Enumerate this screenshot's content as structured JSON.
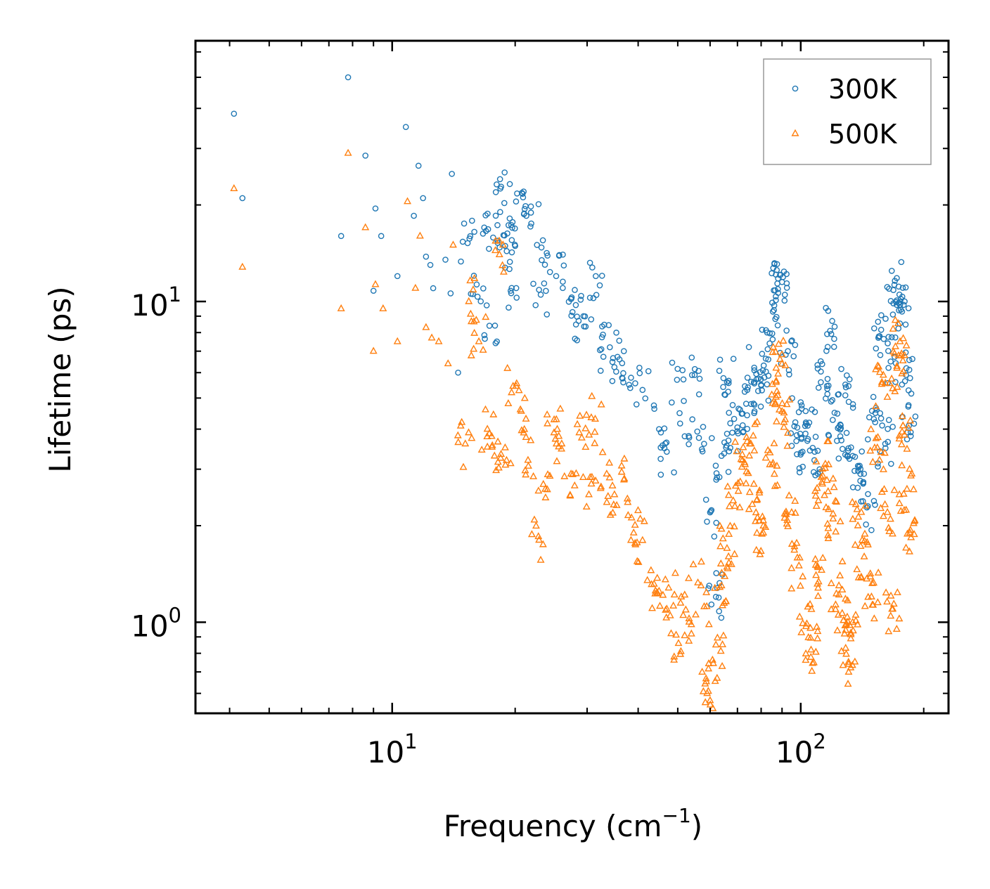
{
  "chart_data": {
    "type": "scatter",
    "xscale": "log",
    "yscale": "log",
    "xlim": [
      3.3,
      230
    ],
    "ylim": [
      0.52,
      65
    ],
    "xlabel": "Frequency (cm",
    "xlabel_sup": "−1",
    "xlabel_end": ")",
    "ylabel": "Lifetime (ps)",
    "legend_position": "top-right",
    "x_ticks": [
      {
        "value": 10,
        "base": "10",
        "exp": "1"
      },
      {
        "value": 100,
        "base": "10",
        "exp": "2"
      }
    ],
    "y_ticks": [
      {
        "value": 1,
        "base": "10",
        "exp": "0"
      },
      {
        "value": 10,
        "base": "10",
        "exp": "1"
      }
    ],
    "series": [
      {
        "name": "300K",
        "marker": "circle",
        "color": "#1f77b4",
        "points": [
          [
            4.1,
            38.5
          ],
          [
            4.3,
            21.0
          ],
          [
            7.5,
            16.0
          ],
          [
            7.8,
            50.0
          ],
          [
            8.6,
            28.5
          ],
          [
            9.0,
            10.8
          ],
          [
            9.1,
            19.5
          ],
          [
            9.4,
            16.0
          ],
          [
            10.3,
            12.0
          ],
          [
            10.8,
            35.0
          ],
          [
            11.3,
            18.5
          ],
          [
            11.6,
            26.5
          ],
          [
            11.9,
            21.0
          ],
          [
            12.1,
            13.8
          ],
          [
            12.4,
            13.0
          ],
          [
            12.6,
            11.0
          ],
          [
            13.5,
            13.5
          ],
          [
            13.9,
            10.6
          ],
          [
            14.0,
            25.0
          ],
          [
            14.5,
            6.0
          ],
          [
            15.0,
            17.5
          ],
          [
            15.3,
            15.2
          ],
          [
            16.1,
            11.3
          ],
          [
            16.8,
            17.0
          ],
          [
            17.3,
            8.4
          ],
          [
            18.1,
            17.3
          ],
          [
            18.4,
            22.5
          ],
          [
            18.9,
            14.9
          ],
          [
            19.5,
            10.8
          ],
          [
            20.0,
            14.9
          ],
          [
            20.1,
            20.5
          ],
          [
            21.3,
            18.5
          ],
          [
            21.9,
            17.5
          ],
          [
            23.1,
            10.5
          ],
          [
            24.0,
            13.9
          ],
          [
            25.2,
            12.0
          ],
          [
            27.5,
            10.3
          ],
          [
            28.6,
            8.7
          ],
          [
            29.4,
            9.0
          ],
          [
            31.5,
            12.0
          ],
          [
            32.5,
            7.1
          ],
          [
            34.1,
            7.2
          ],
          [
            36.0,
            6.6
          ],
          [
            38.0,
            5.5
          ],
          [
            41.0,
            5.3
          ],
          [
            45.0,
            4.0
          ],
          [
            47.0,
            3.4
          ],
          [
            49.8,
            5.7
          ],
          [
            52.0,
            3.8
          ],
          [
            55.0,
            5.9
          ],
          [
            58.0,
            3.6
          ],
          [
            60.0,
            2.2
          ],
          [
            62.0,
            1.2
          ],
          [
            64.0,
            3.3
          ],
          [
            66.0,
            5.6
          ],
          [
            68.0,
            3.9
          ],
          [
            71.0,
            4.6
          ],
          [
            74.0,
            5.3
          ],
          [
            77.0,
            6.1
          ],
          [
            80.0,
            5.5
          ],
          [
            83.0,
            7.1
          ],
          [
            86.0,
            9.4
          ],
          [
            88.0,
            11.8
          ],
          [
            90.0,
            11.5
          ],
          [
            93.0,
            7.0
          ],
          [
            97.0,
            4.2
          ],
          [
            101.0,
            3.4
          ],
          [
            104.0,
            4.1
          ],
          [
            108.0,
            3.2
          ],
          [
            112.0,
            5.6
          ],
          [
            118.0,
            8.1
          ],
          [
            121.0,
            4.5
          ],
          [
            125.0,
            3.8
          ],
          [
            129.0,
            5.4
          ],
          [
            134.0,
            3.3
          ],
          [
            140.0,
            2.9
          ],
          [
            146.0,
            2.3
          ],
          [
            151.0,
            4.3
          ],
          [
            156.0,
            7.8
          ],
          [
            161.0,
            3.6
          ],
          [
            166.0,
            6.5
          ],
          [
            170.0,
            11.6
          ],
          [
            174.0,
            9.9
          ],
          [
            177.0,
            9.3
          ],
          [
            181.0,
            5.9
          ],
          [
            184.0,
            4.1
          ]
        ]
      },
      {
        "name": "500K",
        "marker": "triangle",
        "color": "#ff7f0e",
        "points": [
          [
            4.1,
            22.5
          ],
          [
            4.3,
            12.8
          ],
          [
            7.5,
            9.5
          ],
          [
            7.8,
            29.0
          ],
          [
            8.6,
            17.0
          ],
          [
            9.0,
            7.0
          ],
          [
            9.1,
            11.3
          ],
          [
            9.5,
            9.5
          ],
          [
            10.3,
            7.5
          ],
          [
            10.9,
            20.5
          ],
          [
            11.4,
            11.0
          ],
          [
            11.7,
            16.0
          ],
          [
            12.1,
            8.3
          ],
          [
            12.5,
            7.7
          ],
          [
            13.0,
            7.5
          ],
          [
            13.7,
            6.4
          ],
          [
            14.1,
            15.0
          ],
          [
            14.8,
            4.2
          ],
          [
            15.1,
            3.6
          ],
          [
            15.4,
            10.0
          ],
          [
            16.3,
            7.5
          ],
          [
            17.1,
            4.0
          ],
          [
            17.8,
            3.3
          ],
          [
            18.3,
            14.0
          ],
          [
            18.9,
            3.5
          ],
          [
            19.6,
            5.2
          ],
          [
            20.6,
            4.6
          ],
          [
            21.5,
            3.2
          ],
          [
            22.8,
            1.85
          ],
          [
            23.7,
            2.6
          ],
          [
            24.9,
            3.9
          ],
          [
            26.0,
            3.6
          ],
          [
            27.4,
            2.9
          ],
          [
            28.7,
            3.9
          ],
          [
            30.3,
            2.5
          ],
          [
            31.4,
            4.3
          ],
          [
            33.5,
            2.9
          ],
          [
            35.0,
            2.5
          ],
          [
            37.0,
            2.8
          ],
          [
            39.0,
            1.9
          ],
          [
            41.0,
            1.8
          ],
          [
            43.0,
            1.45
          ],
          [
            45.0,
            1.25
          ],
          [
            47.0,
            1.1
          ],
          [
            49.0,
            0.78
          ],
          [
            51.0,
            1.2
          ],
          [
            54.0,
            0.92
          ],
          [
            57.0,
            1.3
          ],
          [
            59.0,
            0.6
          ],
          [
            60.0,
            0.57
          ],
          [
            62.0,
            0.85
          ],
          [
            64.0,
            1.3
          ],
          [
            66.0,
            1.7
          ],
          [
            69.0,
            2.3
          ],
          [
            72.0,
            3.2
          ],
          [
            75.0,
            3.6
          ],
          [
            78.0,
            2.4
          ],
          [
            81.0,
            1.9
          ],
          [
            84.0,
            3.1
          ],
          [
            87.0,
            5.6
          ],
          [
            89.0,
            6.6
          ],
          [
            91.0,
            4.2
          ],
          [
            95.0,
            2.2
          ],
          [
            99.0,
            1.5
          ],
          [
            103.0,
            0.97
          ],
          [
            106.0,
            0.82
          ],
          [
            109.0,
            1.4
          ],
          [
            113.0,
            2.7
          ],
          [
            117.0,
            3.1
          ],
          [
            120.0,
            2.1
          ],
          [
            124.0,
            1.3
          ],
          [
            128.0,
            0.92
          ],
          [
            131.0,
            0.74
          ],
          [
            134.0,
            1.0
          ],
          [
            138.0,
            2.0
          ],
          [
            143.0,
            1.6
          ],
          [
            149.0,
            1.2
          ],
          [
            154.0,
            3.5
          ],
          [
            158.0,
            5.6
          ],
          [
            163.0,
            2.2
          ],
          [
            168.0,
            1.1
          ],
          [
            172.0,
            6.2
          ],
          [
            175.0,
            7.5
          ],
          [
            178.0,
            4.1
          ],
          [
            182.0,
            2.6
          ],
          [
            185.0,
            1.9
          ]
        ]
      }
    ]
  }
}
